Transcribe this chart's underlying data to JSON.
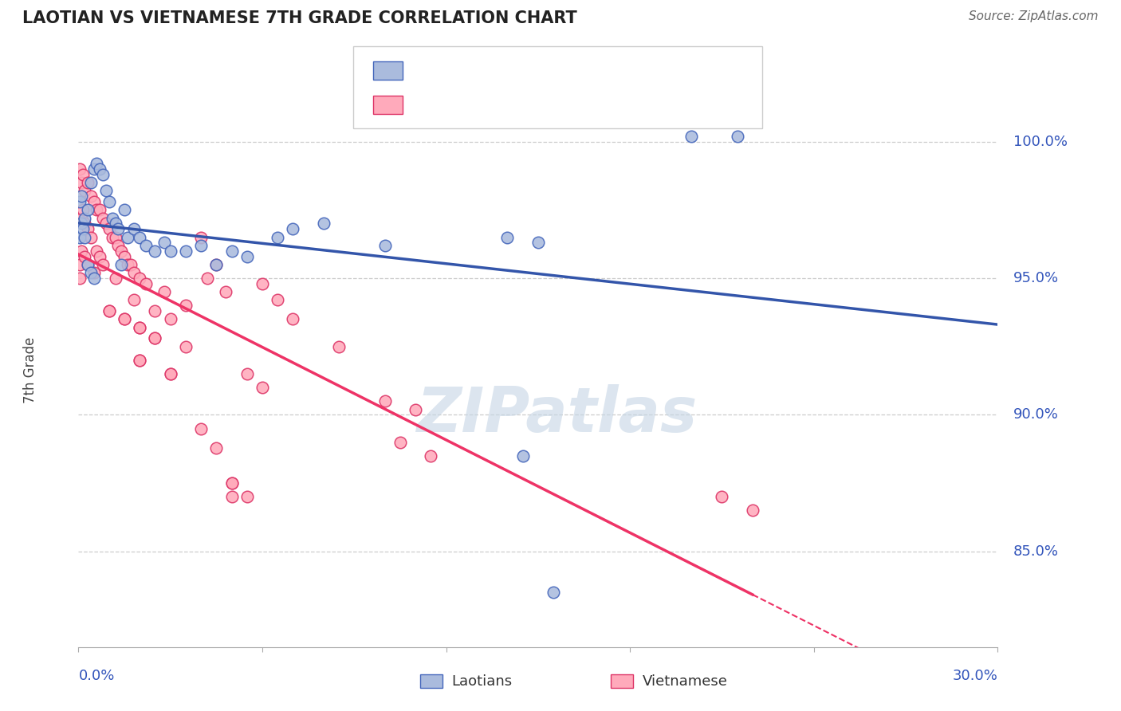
{
  "title": "LAOTIAN VS VIETNAMESE 7TH GRADE CORRELATION CHART",
  "source": "Source: ZipAtlas.com",
  "ylabel": "7th Grade",
  "ytick_labels": [
    "85.0%",
    "90.0%",
    "95.0%",
    "100.0%"
  ],
  "ytick_values": [
    85.0,
    90.0,
    95.0,
    100.0
  ],
  "xmin": 0.0,
  "xmax": 30.0,
  "ymin": 81.5,
  "ymax": 101.8,
  "blue_fill": "#AABBDD",
  "blue_edge": "#4466BB",
  "pink_fill": "#FFAABB",
  "pink_edge": "#DD3366",
  "blue_line_color": "#3355AA",
  "pink_line_color": "#EE3366",
  "grid_color": "#CCCCCC",
  "watermark": "ZIPatlas",
  "blue_x": [
    0.05,
    0.05,
    0.1,
    0.1,
    0.15,
    0.2,
    0.2,
    0.3,
    0.3,
    0.4,
    0.4,
    0.5,
    0.5,
    0.6,
    0.7,
    0.8,
    0.9,
    1.0,
    1.1,
    1.2,
    1.3,
    1.4,
    1.5,
    1.6,
    1.8,
    2.0,
    2.2,
    2.5,
    2.8,
    3.0,
    3.5,
    4.0,
    4.5,
    5.0,
    5.5,
    6.5,
    7.0,
    8.0,
    10.0,
    14.0,
    14.5,
    15.0,
    15.5,
    20.0,
    21.5
  ],
  "blue_y": [
    96.5,
    97.8,
    97.0,
    98.0,
    96.8,
    96.5,
    97.2,
    95.5,
    97.5,
    95.2,
    98.5,
    95.0,
    99.0,
    99.2,
    99.0,
    98.8,
    98.2,
    97.8,
    97.2,
    97.0,
    96.8,
    95.5,
    97.5,
    96.5,
    96.8,
    96.5,
    96.2,
    96.0,
    96.3,
    96.0,
    96.0,
    96.2,
    95.5,
    96.0,
    95.8,
    96.5,
    96.8,
    97.0,
    96.2,
    96.5,
    88.5,
    96.3,
    83.5,
    100.2,
    100.2
  ],
  "pink_x": [
    0.05,
    0.05,
    0.05,
    0.1,
    0.1,
    0.1,
    0.15,
    0.15,
    0.2,
    0.2,
    0.2,
    0.3,
    0.3,
    0.3,
    0.4,
    0.4,
    0.5,
    0.5,
    0.6,
    0.6,
    0.7,
    0.7,
    0.8,
    0.8,
    0.9,
    1.0,
    1.0,
    1.1,
    1.2,
    1.2,
    1.3,
    1.4,
    1.5,
    1.5,
    1.6,
    1.7,
    1.8,
    1.8,
    2.0,
    2.0,
    2.0,
    2.2,
    2.5,
    2.5,
    2.8,
    3.0,
    3.0,
    3.5,
    3.5,
    4.0,
    4.0,
    4.2,
    4.5,
    4.5,
    4.8,
    5.0,
    5.5,
    5.5,
    6.0,
    6.0,
    6.5,
    7.0,
    8.5,
    10.0,
    10.5,
    11.0,
    11.5,
    3.0,
    5.0,
    5.0,
    21.0,
    22.0,
    1.0,
    2.0,
    2.5,
    1.5,
    2.0
  ],
  "pink_y": [
    95.0,
    95.5,
    99.0,
    96.0,
    97.2,
    98.5,
    97.5,
    98.8,
    95.8,
    97.0,
    98.2,
    95.5,
    96.8,
    98.5,
    96.5,
    98.0,
    95.2,
    97.8,
    96.0,
    97.5,
    95.8,
    97.5,
    95.5,
    97.2,
    97.0,
    93.8,
    96.8,
    96.5,
    95.0,
    96.5,
    96.2,
    96.0,
    93.5,
    95.8,
    95.5,
    95.5,
    94.2,
    95.2,
    92.0,
    93.2,
    95.0,
    94.8,
    92.8,
    93.8,
    94.5,
    91.5,
    93.5,
    92.5,
    94.0,
    89.5,
    96.5,
    95.0,
    88.8,
    95.5,
    94.5,
    87.5,
    87.0,
    91.5,
    91.0,
    94.8,
    94.2,
    93.5,
    92.5,
    90.5,
    89.0,
    90.2,
    88.5,
    91.5,
    87.5,
    87.0,
    87.0,
    86.5,
    93.8,
    93.2,
    92.8,
    93.5,
    92.0
  ]
}
